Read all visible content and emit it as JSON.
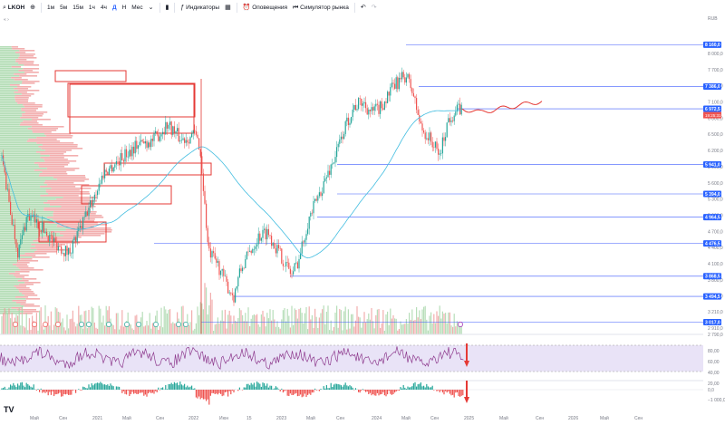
{
  "toolbar": {
    "symbol": "LKOH",
    "intervals": [
      "1м",
      "5м",
      "15м",
      "1ч",
      "4ч",
      "Д",
      "Н",
      "Мес"
    ],
    "active_interval": "Д",
    "indicators_label": "Индикаторы",
    "alerts_label": "Оповещения",
    "replay_label": "Симулятор рынка"
  },
  "currency": "RUB",
  "chart_data": {
    "type": "candlestick",
    "ylim": [
      2790,
      8200
    ],
    "price_axis": [
      "8 000,0",
      "7 700,0",
      "7 400,0",
      "7 100,0",
      "6 800,0",
      "6 500,0",
      "6 200,0",
      "5 900,0",
      "5 600,0",
      "5 300,0",
      "5 000,0",
      "4 700,0",
      "4 400,0",
      "4 100,0",
      "3 800,0",
      "3 500,0",
      "3 210,0",
      "2 910,0",
      "2 790,0"
    ],
    "price_axis_values": [
      8000,
      7700,
      7400,
      7100,
      6800,
      6500,
      6200,
      5900,
      5600,
      5300,
      5000,
      4700,
      4400,
      4100,
      3800,
      3500,
      3210,
      2910,
      2790
    ],
    "levels": [
      {
        "label": "8 160,0",
        "value": 8160
      },
      {
        "label": "7 386,0",
        "value": 7386
      },
      {
        "label": "6 972,5",
        "value": 6972.5
      },
      {
        "label": "5 941,0",
        "value": 5941
      },
      {
        "label": "5 394,0",
        "value": 5394
      },
      {
        "label": "4 964,5",
        "value": 4964.5
      },
      {
        "label": "4 476,5",
        "value": 4476.5
      },
      {
        "label": "3 868,5",
        "value": 3868.5
      },
      {
        "label": "3 494,5",
        "value": 3494.5
      },
      {
        "label": "3 017,0",
        "value": 3017
      }
    ],
    "last_price": {
      "label": "6 972,5",
      "countdown": "19:25:31",
      "value": 6972.5
    },
    "time_axis": [
      "Май",
      "Сен",
      "2021",
      "Май",
      "Сен",
      "2022",
      "Июн",
      "15",
      "2023",
      "Май",
      "Сен",
      "2024",
      "Май",
      "Сен",
      "2025",
      "Май",
      "Сен",
      "2026",
      "Май",
      "Сен"
    ],
    "rsi_axis": [
      "80,00",
      "60,00",
      "40,00",
      "20,00"
    ],
    "macd_axis": [
      "0,0",
      "−1 000,0"
    ]
  },
  "colors": {
    "up": "#26a69a",
    "down": "#ef5350",
    "ma": "#42bde0",
    "level": "#3d5afe",
    "zone": "#e53935",
    "rsi_fill": "#e9e3f7",
    "rsi_line": "#8e3b8e",
    "forecast": "#e53935"
  },
  "logo": "TV"
}
